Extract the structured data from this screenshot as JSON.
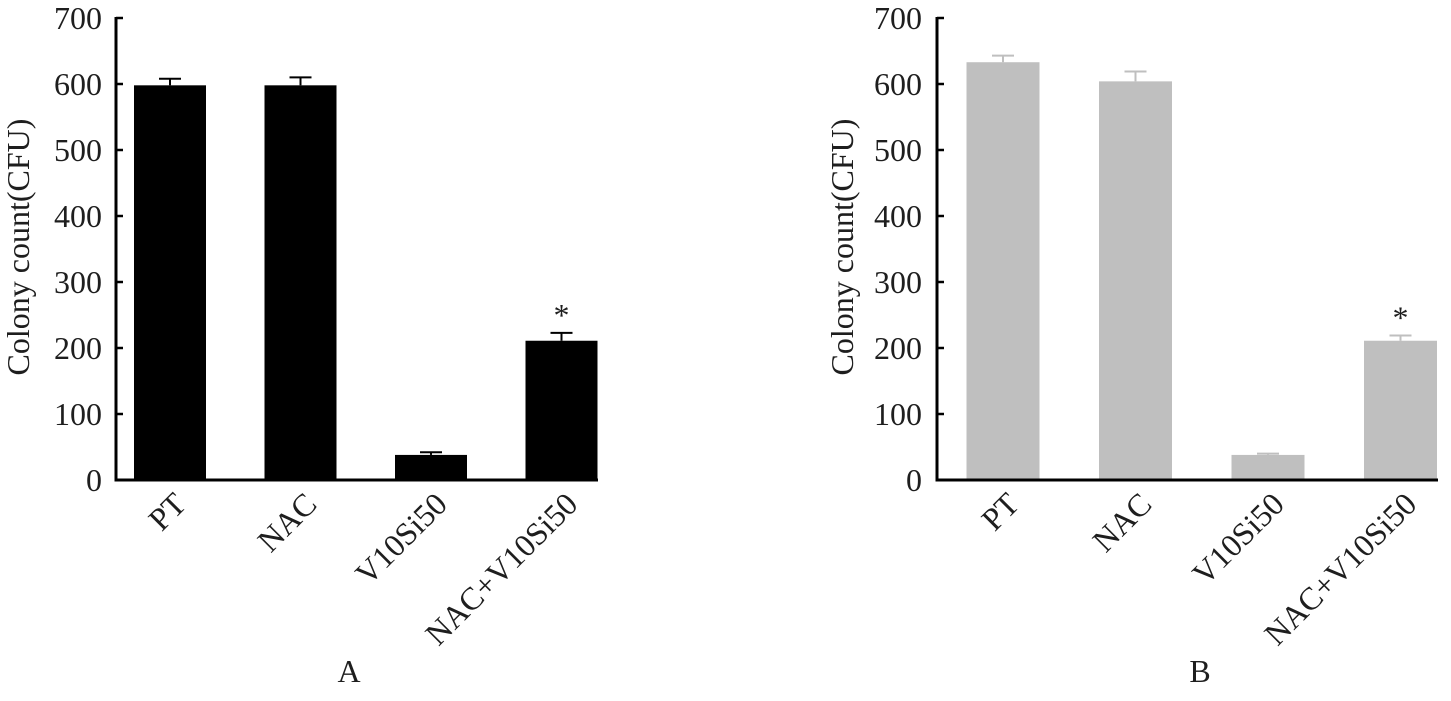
{
  "chart_data": [
    {
      "type": "bar",
      "panel_label": "A",
      "categories": [
        "PT",
        "NAC",
        "V10Si50",
        "NAC+V10Si50"
      ],
      "values": [
        598,
        598,
        38,
        211
      ],
      "error": [
        10,
        12,
        4,
        12
      ],
      "significance": [
        {
          "index": 3,
          "text": "*"
        }
      ],
      "ylabel": "Colony count(CFU)",
      "ylim": [
        0,
        700
      ],
      "yticks": [
        0,
        100,
        200,
        300,
        400,
        500,
        600,
        700
      ],
      "bar_color": "#000000",
      "error_color": "#000000",
      "axis_color": "#000000",
      "grid": false,
      "legend": "none"
    },
    {
      "type": "bar",
      "panel_label": "B",
      "categories": [
        "PT",
        "NAC",
        "V10Si50",
        "NAC+V10Si50"
      ],
      "values": [
        633,
        604,
        38,
        211
      ],
      "error": [
        10,
        15,
        2,
        8
      ],
      "significance": [
        {
          "index": 3,
          "text": "*"
        }
      ],
      "ylabel": "Colony count(CFU)",
      "ylim": [
        0,
        700
      ],
      "yticks": [
        0,
        100,
        200,
        300,
        400,
        500,
        600,
        700
      ],
      "bar_color": "#bfbfbf",
      "error_color": "#bfbfbf",
      "axis_color": "#000000",
      "grid": false,
      "legend": "none"
    }
  ]
}
